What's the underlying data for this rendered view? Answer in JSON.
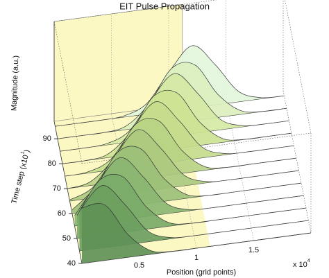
{
  "chart_data": {
    "type": "waterfall",
    "title": "EIT Pulse Propagation",
    "xlabel": "Position (grid points)",
    "x_multiplier": {
      "base": "x 10",
      "exponent": "4"
    },
    "ylabel": {
      "start": "Time step (x10",
      "exponent": "1",
      "end": ")"
    },
    "zlabel": "Magnitude (a.u.)",
    "x": [
      0,
      0.2,
      0.4,
      0.6,
      0.8,
      1.0,
      1.2,
      1.4,
      1.6,
      1.8,
      2.0
    ],
    "xlim": [
      0,
      2
    ],
    "ylim": [
      40,
      97
    ],
    "zlim": [
      0,
      1.6
    ],
    "xticks": [
      0.5,
      1,
      1.5
    ],
    "yticks": [
      40,
      50,
      60,
      70,
      80,
      90
    ],
    "grid": true,
    "series": [
      {
        "name": "40",
        "time": 40,
        "color": "#5f9157",
        "values": [
          0.89,
          0.89,
          0.37,
          0.06,
          0,
          0,
          0,
          0,
          0,
          0,
          0
        ]
      },
      {
        "name": "45",
        "time": 45,
        "color": "#6c9e5f",
        "values": [
          0.64,
          1,
          0.64,
          0.17,
          0.02,
          0,
          0,
          0,
          0,
          0,
          0
        ]
      },
      {
        "name": "50",
        "time": 50,
        "color": "#7aaa68",
        "values": [
          0.37,
          0.89,
          0.89,
          0.37,
          0.06,
          0,
          0,
          0,
          0,
          0,
          0
        ]
      },
      {
        "name": "55",
        "time": 55,
        "color": "#8bb672",
        "values": [
          0.17,
          0.64,
          1,
          0.64,
          0.17,
          0.02,
          0,
          0,
          0,
          0,
          0
        ]
      },
      {
        "name": "60",
        "time": 60,
        "color": "#9cc07a",
        "values": [
          0.06,
          0.37,
          0.89,
          0.89,
          0.37,
          0.06,
          0,
          0,
          0,
          0,
          0
        ]
      },
      {
        "name": "65",
        "time": 65,
        "color": "#abc97f",
        "values": [
          0.02,
          0.17,
          0.64,
          1,
          0.64,
          0.17,
          0.02,
          0,
          0,
          0,
          0
        ]
      },
      {
        "name": "70",
        "time": 70,
        "color": "#b9d386",
        "values": [
          0,
          0.06,
          0.37,
          0.89,
          0.89,
          0.37,
          0.06,
          0,
          0,
          0,
          0
        ]
      },
      {
        "name": "75",
        "time": 75,
        "color": "#c4dc8c",
        "values": [
          0,
          0.02,
          0.17,
          0.64,
          1,
          0.64,
          0.17,
          0.02,
          0,
          0,
          0
        ]
      },
      {
        "name": "80",
        "time": 80,
        "color": "#cce394",
        "values": [
          0,
          0,
          0.06,
          0.37,
          0.89,
          0.89,
          0.37,
          0.06,
          0,
          0,
          0
        ]
      },
      {
        "name": "85",
        "time": 85,
        "color": "#d4e9a4",
        "values": [
          0,
          0,
          0.02,
          0.17,
          0.64,
          1,
          0.64,
          0.17,
          0.02,
          0,
          0
        ]
      },
      {
        "name": "90",
        "time": 90,
        "color": "#dcefbe",
        "values": [
          0,
          0,
          0,
          0.06,
          0.37,
          0.89,
          0.89,
          0.37,
          0.06,
          0,
          0
        ]
      },
      {
        "name": "95",
        "time": 95,
        "color": "#e3f6dc",
        "values": [
          0,
          0,
          0,
          0.02,
          0.17,
          0.64,
          1,
          0.64,
          0.17,
          0.02,
          0
        ]
      }
    ]
  }
}
